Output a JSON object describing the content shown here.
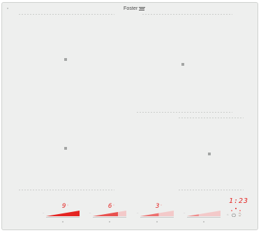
{
  "brand": {
    "name": "Foster"
  },
  "zones": [
    {
      "level": "9",
      "fill_fraction": 1.0
    },
    {
      "level": "6",
      "fill_fraction": 0.75
    },
    {
      "level": "3",
      "fill_fraction": 0.55
    },
    {
      "level": "",
      "fill_fraction": 0.35
    }
  ],
  "timer": {
    "value": "1:23"
  },
  "icons": [
    "power-icon",
    "lock-icon",
    "timer-icon"
  ],
  "colors": {
    "display_red": "#e42422",
    "glass": "#eeefee"
  }
}
